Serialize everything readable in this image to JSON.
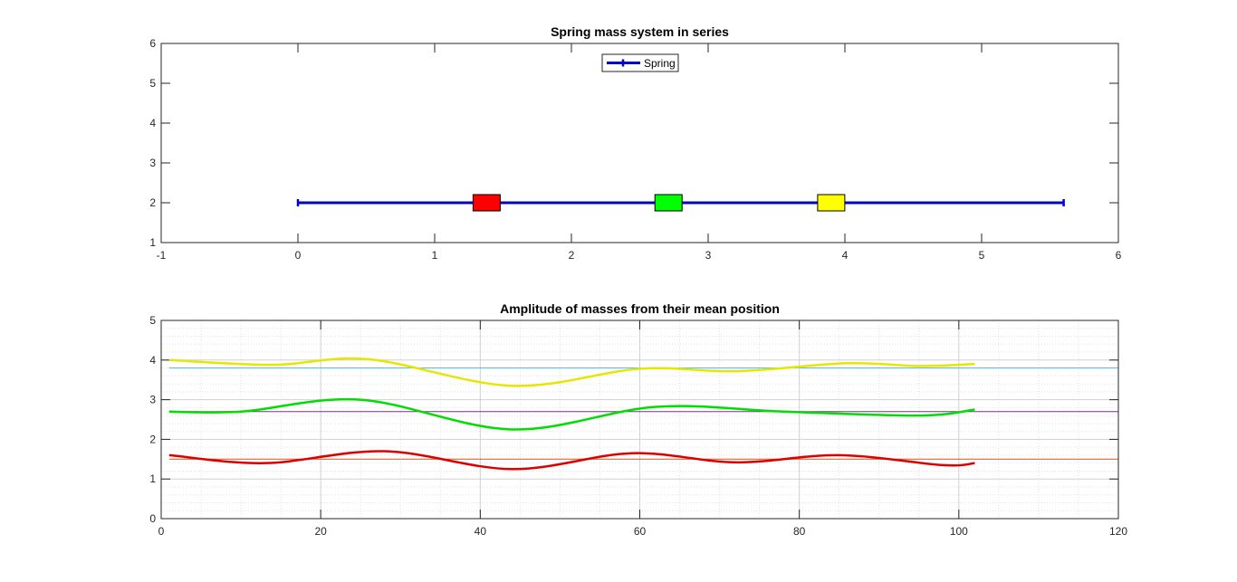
{
  "chart_data": [
    {
      "type": "line",
      "title": "Spring mass system in series",
      "xlim": [
        -1,
        6
      ],
      "ylim": [
        1,
        6
      ],
      "x_ticks": [
        "-1",
        "0",
        "1",
        "2",
        "3",
        "4",
        "5",
        "6"
      ],
      "y_ticks": [
        "1",
        "2",
        "3",
        "4",
        "5",
        "6"
      ],
      "grid": false,
      "legend": {
        "placement": "top-center",
        "entries": [
          "Spring"
        ]
      },
      "series": [
        {
          "name": "Spring",
          "color": "#0000cc",
          "x": [
            0,
            5.6
          ],
          "y": [
            2,
            2
          ],
          "marker": "plus"
        }
      ],
      "masses": [
        {
          "color": "#ff0000",
          "x": 1.38,
          "y": 2
        },
        {
          "color": "#00ff00",
          "x": 2.71,
          "y": 2
        },
        {
          "color": "#ffff00",
          "x": 3.9,
          "y": 2
        }
      ]
    },
    {
      "type": "line",
      "title": "Amplitude of masses from their mean position",
      "xlim": [
        0,
        120
      ],
      "ylim": [
        0,
        5
      ],
      "x_ticks": [
        "0",
        "20",
        "40",
        "60",
        "80",
        "100",
        "120"
      ],
      "y_ticks": [
        "0",
        "1",
        "2",
        "3",
        "4",
        "5"
      ],
      "grid": true,
      "series": [
        {
          "color": "#e6e600",
          "width": 2.5,
          "x": [
            1,
            14,
            26,
            44,
            60,
            72,
            86,
            95,
            102
          ],
          "y": [
            4.0,
            3.88,
            4.02,
            3.35,
            3.78,
            3.72,
            3.92,
            3.85,
            3.9
          ]
        },
        {
          "color": "#00dd00",
          "width": 2.5,
          "x": [
            1,
            10,
            25,
            44,
            62,
            78,
            95,
            102
          ],
          "y": [
            2.7,
            2.7,
            3.0,
            2.25,
            2.82,
            2.7,
            2.6,
            2.75
          ]
        },
        {
          "color": "#dd0000",
          "width": 2.5,
          "x": [
            1,
            13,
            28,
            44,
            59,
            72,
            85,
            98,
            102
          ],
          "y": [
            1.6,
            1.4,
            1.7,
            1.25,
            1.65,
            1.42,
            1.6,
            1.35,
            1.4
          ]
        },
        {
          "color": "#4dbeee",
          "width": 1,
          "x": [
            1,
            120
          ],
          "y": [
            3.8,
            3.8
          ]
        },
        {
          "color": "#7e2f8e",
          "width": 1,
          "x": [
            1,
            120
          ],
          "y": [
            2.7,
            2.7
          ]
        },
        {
          "color": "#d95319",
          "width": 1,
          "x": [
            1,
            120
          ],
          "y": [
            1.5,
            1.5
          ]
        }
      ]
    }
  ]
}
